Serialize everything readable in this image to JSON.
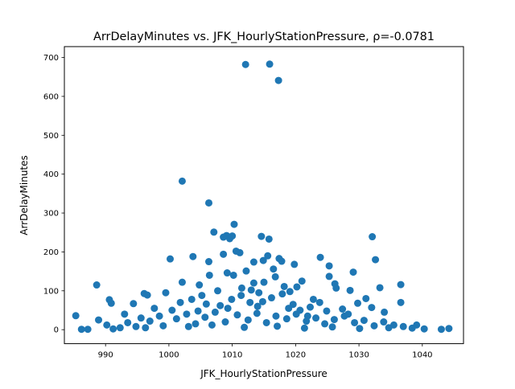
{
  "chart_data": {
    "type": "scatter",
    "title": "ArrDelayMinutes vs. JFK_HourlyStationPressure, ρ=-0.0781",
    "xlabel": "JFK_HourlyStationPressure",
    "ylabel": "ArrDelayMinutes",
    "xlim": [
      983.5,
      1046.5
    ],
    "ylim": [
      -36,
      728
    ],
    "xticks": [
      990,
      1000,
      1010,
      1020,
      1030,
      1040
    ],
    "yticks": [
      0,
      100,
      200,
      300,
      400,
      500,
      600,
      700
    ],
    "grid": false,
    "legend": "none",
    "point_color": "#1f77b4",
    "points": [
      [
        1012.1,
        682
      ],
      [
        1015.9,
        683
      ],
      [
        1017.3,
        641
      ],
      [
        1002.1,
        382
      ],
      [
        1006.3,
        326
      ],
      [
        1010.3,
        271
      ],
      [
        1007.1,
        251
      ],
      [
        1008.6,
        238
      ],
      [
        1009.1,
        242
      ],
      [
        1009.6,
        234
      ],
      [
        1010.0,
        241
      ],
      [
        1014.6,
        240
      ],
      [
        1015.8,
        233
      ],
      [
        1032.1,
        239
      ],
      [
        1023.9,
        186
      ],
      [
        1003.8,
        188
      ],
      [
        1000.2,
        182
      ],
      [
        1017.4,
        183
      ],
      [
        1017.8,
        176
      ],
      [
        1019.8,
        168
      ],
      [
        1025.3,
        164
      ],
      [
        1032.6,
        180
      ],
      [
        1008.6,
        194
      ],
      [
        1011.2,
        198
      ],
      [
        1010.6,
        202
      ],
      [
        1015.6,
        190
      ],
      [
        1014.9,
        178
      ],
      [
        1013.4,
        174
      ],
      [
        1006.3,
        175
      ],
      [
        1016.5,
        156
      ],
      [
        1016.8,
        136
      ],
      [
        1012.2,
        151
      ],
      [
        1009.2,
        146
      ],
      [
        1010.2,
        140
      ],
      [
        1021.0,
        125
      ],
      [
        1020.2,
        110
      ],
      [
        1018.2,
        111
      ],
      [
        1025.3,
        137
      ],
      [
        1029.1,
        148
      ],
      [
        1033.3,
        108
      ],
      [
        1036.6,
        116
      ],
      [
        1002.1,
        122
      ],
      [
        1004.8,
        115
      ],
      [
        1006.4,
        140
      ],
      [
        1013.4,
        120
      ],
      [
        1015.0,
        122
      ],
      [
        988.6,
        115
      ],
      [
        990.6,
        77
      ],
      [
        990.9,
        68
      ],
      [
        996.1,
        93
      ],
      [
        996.6,
        89
      ],
      [
        999.5,
        95
      ],
      [
        1001.8,
        70
      ],
      [
        1003.6,
        78
      ],
      [
        1005.2,
        88
      ],
      [
        1007.7,
        100
      ],
      [
        1011.5,
        107
      ],
      [
        1014.2,
        95
      ],
      [
        1019.1,
        98
      ],
      [
        1022.8,
        78
      ],
      [
        1026.4,
        107
      ],
      [
        1028.6,
        101
      ],
      [
        1031.1,
        80
      ],
      [
        1032.0,
        57
      ],
      [
        1027.4,
        53
      ],
      [
        1023.8,
        70
      ],
      [
        1034.0,
        45
      ],
      [
        1036.6,
        70
      ],
      [
        994.4,
        67
      ],
      [
        997.7,
        55
      ],
      [
        1026.2,
        118
      ],
      [
        1029.8,
        68
      ],
      [
        1020.7,
        50
      ],
      [
        1014.0,
        60
      ],
      [
        1009.3,
        55
      ],
      [
        1004.6,
        48
      ],
      [
        1000.5,
        50
      ],
      [
        993.0,
        40
      ],
      [
        985.3,
        36
      ],
      [
        986.2,
        1
      ],
      [
        987.2,
        1
      ],
      [
        988.9,
        25
      ],
      [
        990.2,
        12
      ],
      [
        991.2,
        2
      ],
      [
        992.3,
        5
      ],
      [
        993.5,
        18
      ],
      [
        994.8,
        8
      ],
      [
        995.6,
        30
      ],
      [
        997.0,
        22
      ],
      [
        998.5,
        35
      ],
      [
        999.1,
        10
      ],
      [
        1001.2,
        28
      ],
      [
        1002.8,
        40
      ],
      [
        1004.2,
        15
      ],
      [
        1005.7,
        32
      ],
      [
        1007.3,
        45
      ],
      [
        1008.9,
        20
      ],
      [
        1010.8,
        38
      ],
      [
        1012.5,
        25
      ],
      [
        1013.9,
        42
      ],
      [
        1015.4,
        18
      ],
      [
        1016.9,
        35
      ],
      [
        1018.6,
        28
      ],
      [
        1020.1,
        40
      ],
      [
        1021.7,
        22
      ],
      [
        1023.2,
        30
      ],
      [
        1024.6,
        15
      ],
      [
        1026.1,
        26
      ],
      [
        1027.7,
        35
      ],
      [
        1029.3,
        18
      ],
      [
        1030.8,
        24
      ],
      [
        1032.4,
        10
      ],
      [
        1033.9,
        20
      ],
      [
        1035.5,
        12
      ],
      [
        1037.0,
        8
      ],
      [
        1038.4,
        4
      ],
      [
        1039.1,
        12
      ],
      [
        1040.3,
        2
      ],
      [
        1043.0,
        1
      ],
      [
        1044.2,
        3
      ],
      [
        996.3,
        5
      ],
      [
        1003.1,
        8
      ],
      [
        1006.8,
        12
      ],
      [
        1011.9,
        6
      ],
      [
        1017.1,
        9
      ],
      [
        1021.4,
        4
      ],
      [
        1025.8,
        7
      ],
      [
        1030.1,
        3
      ],
      [
        1034.7,
        5
      ],
      [
        1008.1,
        62
      ],
      [
        1012.8,
        70
      ],
      [
        1016.2,
        82
      ],
      [
        1019.6,
        65
      ],
      [
        1022.3,
        58
      ],
      [
        1011.4,
        88
      ],
      [
        1013.0,
        102
      ],
      [
        1017.9,
        92
      ],
      [
        1009.9,
        78
      ],
      [
        1024.9,
        48
      ],
      [
        1005.9,
        66
      ],
      [
        1028.3,
        40
      ],
      [
        1018.9,
        55
      ],
      [
        1014.8,
        72
      ],
      [
        1021.9,
        35
      ]
    ]
  }
}
